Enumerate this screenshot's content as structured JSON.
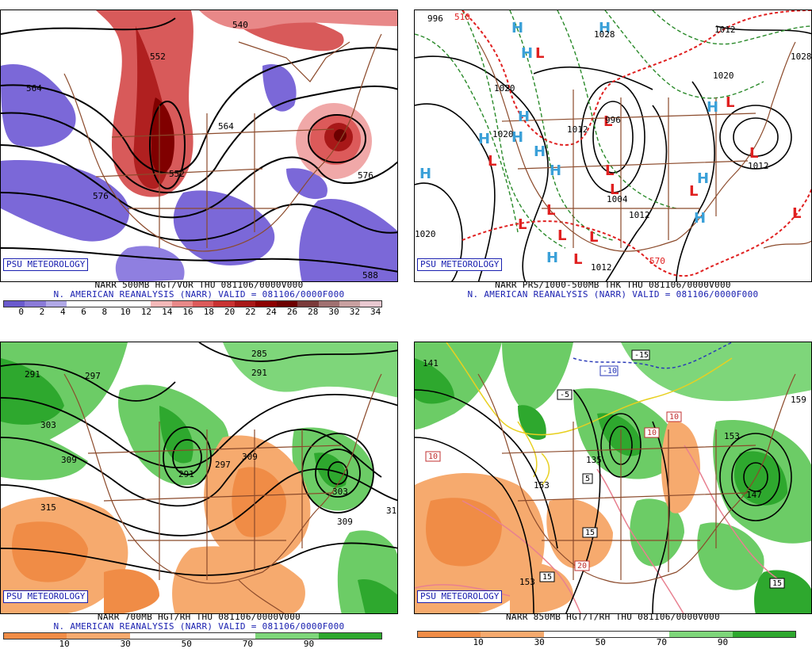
{
  "panels": [
    {
      "id": "500mb",
      "badge": "PSU METEOROLOGY",
      "title": "NARR 500MB HGT/VOR THU 081106/0000V000",
      "subtitle": "N. AMERICAN REANALYSIS (NARR) VALID = 081106/0000F000",
      "colorbar": [
        "#6a5acd",
        "#8a7ad8",
        "#b0a8e6",
        "#ffffff",
        "#ffffff",
        "#ffffff",
        "#ffffff",
        "#f4b8b8",
        "#e88888",
        "#dc5a5a",
        "#c83232",
        "#a81818",
        "#8c0000",
        "#6c0000",
        "#7a3a3a",
        "#a07070",
        "#c8a0a0",
        "#e8c8d0"
      ],
      "ticks": [
        "0",
        "2",
        "4",
        "6",
        "8",
        "10",
        "12",
        "14",
        "16",
        "18",
        "20",
        "22",
        "24",
        "26",
        "28",
        "30",
        "32",
        "34"
      ],
      "contour_labels": [
        "540",
        "552",
        "564",
        "576",
        "588",
        "576",
        "552",
        "564"
      ]
    },
    {
      "id": "sfc",
      "badge": "PSU METEOROLOGY",
      "title": "NARR PRS/1000-500MB THK THU 081106/0000V000",
      "subtitle": "N. AMERICAN REANALYSIS (NARR) VALID = 081106/0000F000",
      "contour_labels": [
        "996",
        "510",
        "1028",
        "1012",
        "1028",
        "1020",
        "1020",
        "1012",
        "996",
        "1012",
        "1020",
        "1012",
        "1012",
        "570",
        "1004",
        "1020"
      ],
      "high_symbol": "H",
      "low_symbol": "L"
    },
    {
      "id": "700mb",
      "badge": "PSU METEOROLOGY",
      "title": "NARR 700MB HGT/RH THU 081106/0000V000",
      "subtitle": "N. AMERICAN REANALYSIS (NARR) VALID = 081106/0000F000",
      "colorbar": [
        "#f08c46",
        "#f6aa6e",
        "#ffffff",
        "#ffffff",
        "#7ed67a",
        "#2ea82e"
      ],
      "ticks": [
        "10",
        "30",
        "50",
        "70",
        "90"
      ],
      "contour_labels": [
        "285",
        "291",
        "297",
        "291",
        "303",
        "309",
        "315",
        "291",
        "297",
        "309",
        "303",
        "309",
        "31"
      ]
    },
    {
      "id": "850mb",
      "badge": "PSU METEOROLOGY",
      "title": "NARR 850MB HGT/T/RH THU 081106/0000V000",
      "colorbar": [
        "#f08c46",
        "#f6aa6e",
        "#ffffff",
        "#ffffff",
        "#7ed67a",
        "#2ea82e"
      ],
      "ticks": [
        "10",
        "30",
        "50",
        "70",
        "90"
      ],
      "contour_labels": [
        "-15",
        "-10",
        "-5",
        "5",
        "10",
        "10",
        "10",
        "15",
        "15",
        "15",
        "20",
        "135",
        "141",
        "147",
        "153",
        "159",
        "153",
        "153"
      ]
    }
  ]
}
